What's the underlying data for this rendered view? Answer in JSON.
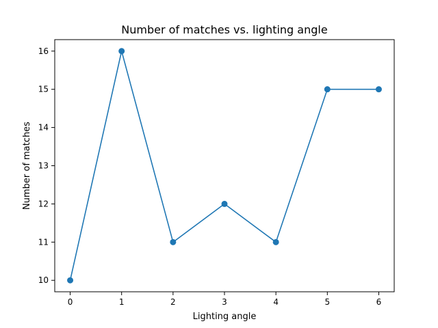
{
  "chart_data": {
    "type": "line",
    "title": "Number of matches vs. lighting angle",
    "xlabel": "Lighting angle",
    "ylabel": "Number of matches",
    "x": [
      0,
      1,
      2,
      3,
      4,
      5,
      6
    ],
    "series": [
      {
        "values": [
          10,
          16,
          11,
          12,
          11,
          15,
          15
        ],
        "color": "#1f77b4",
        "marker": "circle"
      }
    ],
    "xticks": [
      "0",
      "1",
      "2",
      "3",
      "4",
      "5",
      "6"
    ],
    "yticks": [
      "10",
      "11",
      "12",
      "13",
      "14",
      "15",
      "16"
    ],
    "xlim": [
      -0.3,
      6.3
    ],
    "ylim": [
      9.7,
      16.3
    ],
    "grid": false,
    "legend": false
  }
}
